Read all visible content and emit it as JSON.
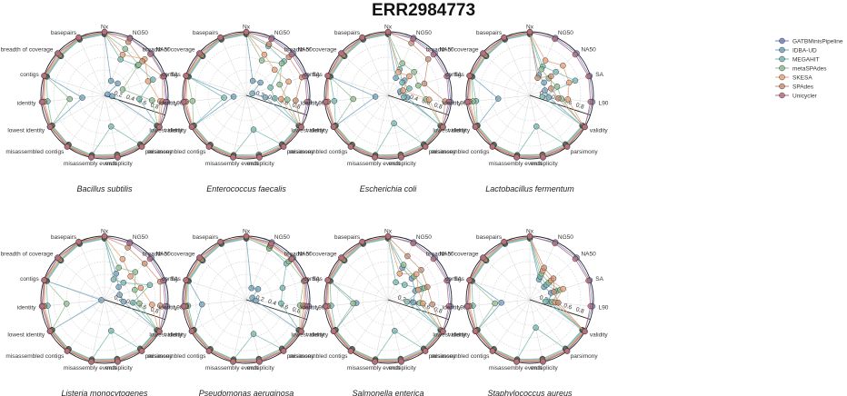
{
  "title": "ERR2984773",
  "chart_data": {
    "type": "radar",
    "axes": [
      "NG50",
      "NA50",
      "SA",
      "L90",
      "validity",
      "parsimony",
      "multiplicity",
      "misassembly events",
      "misassembled contigs",
      "lowest identity",
      "identity",
      "contigs",
      "breadth of coverage",
      "basepairs",
      "Nx"
    ],
    "rticks": [
      "0.2",
      "0.4",
      "0.6",
      "0.8"
    ],
    "grid": true,
    "legend_position": "right",
    "series": [
      {
        "name": "GATBMinisPipeline",
        "color": "#6c7fc4"
      },
      {
        "name": "IDBA-UD",
        "color": "#6fa3bf"
      },
      {
        "name": "MEGAHIT",
        "color": "#73b9b0"
      },
      {
        "name": "metaSPAdes",
        "color": "#8fbf8f"
      },
      {
        "name": "SKESA",
        "color": "#e8a37a"
      },
      {
        "name": "SPAdes",
        "color": "#c98f73"
      },
      {
        "name": "Unicycler",
        "color": "#b56a7e"
      }
    ],
    "panels": [
      {
        "species": "Bacillus subtilis",
        "values": [
          [
            0.99,
            0.99,
            0.99,
            0.99,
            0.99,
            0.99,
            0.99,
            0.99,
            0.99,
            0.99,
            0.99,
            0.99,
            0.99,
            0.99,
            0.99
          ],
          [
            0.25,
            0.28,
            0.05,
            0.12,
            0.95,
            0.95,
            0.95,
            0.96,
            0.96,
            0.95,
            0.35,
            0.95,
            0.92,
            0.96,
            0.96
          ],
          [
            0.62,
            0.7,
            0.8,
            0.55,
            0.96,
            0.96,
            0.5,
            0.96,
            0.96,
            0.95,
            0.9,
            0.96,
            0.93,
            0.97,
            0.97
          ],
          [
            0.8,
            0.72,
            0.3,
            0.75,
            0.97,
            0.97,
            0.96,
            0.97,
            0.97,
            0.96,
            0.55,
            0.97,
            0.94,
            0.98,
            0.98
          ],
          [
            0.7,
            0.85,
            0.72,
            0.88,
            0.98,
            0.98,
            0.97,
            0.98,
            0.98,
            0.97,
            0.95,
            0.98,
            0.95,
            0.99,
            0.99
          ],
          [
            0.92,
            0.8,
            0.96,
            0.92,
            0.99,
            0.99,
            0.98,
            0.99,
            0.99,
            0.98,
            0.97,
            0.99,
            0.97,
            0.99,
            0.99
          ],
          [
            0.98,
            0.97,
            0.98,
            0.97,
            1.0,
            1.0,
            1.0,
            1.0,
            1.0,
            0.99,
            0.99,
            1.0,
            0.99,
            1.0,
            1.0
          ]
        ]
      },
      {
        "species": "Enterococcus faecalis",
        "values": [
          [
            0.99,
            0.99,
            0.99,
            0.99,
            0.99,
            0.99,
            0.99,
            0.99,
            0.99,
            0.99,
            0.99,
            0.99,
            0.99,
            0.99,
            0.99
          ],
          [
            0.25,
            0.3,
            0.1,
            0.3,
            0.95,
            0.95,
            0.95,
            0.96,
            0.96,
            0.95,
            0.2,
            0.95,
            0.92,
            0.96,
            0.96
          ],
          [
            0.85,
            0.8,
            0.4,
            0.45,
            0.96,
            0.96,
            0.55,
            0.96,
            0.96,
            0.95,
            0.35,
            0.96,
            0.93,
            0.97,
            0.97
          ],
          [
            0.6,
            0.75,
            0.55,
            0.65,
            0.97,
            0.97,
            0.97,
            0.97,
            0.97,
            0.96,
            0.85,
            0.97,
            0.94,
            0.98,
            0.98
          ],
          [
            0.7,
            0.6,
            0.7,
            0.55,
            0.98,
            0.98,
            0.98,
            0.98,
            0.98,
            0.97,
            0.95,
            0.98,
            0.95,
            0.99,
            0.99
          ],
          [
            0.88,
            0.9,
            0.92,
            0.78,
            0.99,
            0.99,
            0.99,
            0.99,
            0.99,
            0.98,
            0.97,
            0.99,
            0.97,
            0.99,
            0.99
          ],
          [
            0.97,
            0.96,
            0.97,
            0.96,
            1.0,
            1.0,
            1.0,
            1.0,
            1.0,
            0.99,
            0.99,
            1.0,
            0.99,
            1.0,
            1.0
          ]
        ]
      },
      {
        "species": "Escherichia coli",
        "values": [
          [
            0.99,
            0.99,
            0.99,
            0.99,
            0.99,
            0.99,
            0.99,
            0.99,
            0.99,
            0.99,
            0.99,
            0.99,
            0.99,
            0.99,
            0.99
          ],
          [
            0.3,
            0.35,
            0.2,
            0.3,
            0.95,
            0.95,
            0.95,
            0.96,
            0.96,
            0.95,
            0.2,
            0.95,
            0.92,
            0.96,
            0.96
          ],
          [
            0.45,
            0.3,
            0.35,
            0.25,
            0.96,
            0.96,
            0.45,
            0.96,
            0.96,
            0.95,
            0.85,
            0.96,
            0.93,
            0.97,
            0.97
          ],
          [
            0.55,
            0.55,
            0.5,
            0.6,
            0.97,
            0.97,
            0.96,
            0.97,
            0.97,
            0.96,
            0.55,
            0.97,
            0.94,
            0.98,
            0.98
          ],
          [
            0.4,
            0.45,
            0.25,
            0.65,
            0.98,
            0.98,
            0.97,
            0.98,
            0.98,
            0.97,
            0.95,
            0.98,
            0.95,
            0.99,
            0.99
          ],
          [
            0.9,
            0.85,
            0.6,
            0.9,
            0.99,
            0.99,
            0.98,
            0.99,
            0.99,
            0.98,
            0.97,
            0.99,
            0.97,
            0.99,
            0.99
          ],
          [
            0.97,
            0.96,
            0.97,
            0.96,
            1.0,
            1.0,
            1.0,
            1.0,
            1.0,
            0.99,
            0.99,
            1.0,
            0.99,
            1.0,
            1.0
          ]
        ]
      },
      {
        "species": "Lactobacillus fermentum",
        "values": [
          [
            0.99,
            0.99,
            0.99,
            0.99,
            0.99,
            0.99,
            0.99,
            0.99,
            0.99,
            0.99,
            0.99,
            0.99,
            0.99,
            0.99,
            0.99
          ],
          [
            0.35,
            0.3,
            0.25,
            0.3,
            0.95,
            0.95,
            0.95,
            0.96,
            0.96,
            0.95,
            0.5,
            0.95,
            0.92,
            0.96,
            0.96
          ],
          [
            0.5,
            0.55,
            0.75,
            0.2,
            0.96,
            0.96,
            0.5,
            0.96,
            0.96,
            0.95,
            0.85,
            0.96,
            0.93,
            0.97,
            0.97
          ],
          [
            0.45,
            0.4,
            0.45,
            0.5,
            0.97,
            0.97,
            0.96,
            0.97,
            0.97,
            0.96,
            0.9,
            0.97,
            0.94,
            0.98,
            0.98
          ],
          [
            0.6,
            0.7,
            0.65,
            0.6,
            0.98,
            0.98,
            0.97,
            0.98,
            0.98,
            0.97,
            0.95,
            0.98,
            0.95,
            0.99,
            0.99
          ],
          [
            0.3,
            0.45,
            0.35,
            0.45,
            0.99,
            0.99,
            0.98,
            0.99,
            0.99,
            0.98,
            0.97,
            0.99,
            0.97,
            0.99,
            0.99
          ],
          [
            0.97,
            0.96,
            0.97,
            0.96,
            1.0,
            1.0,
            1.0,
            1.0,
            1.0,
            0.99,
            0.99,
            1.0,
            0.99,
            1.0,
            1.0
          ]
        ]
      },
      {
        "species": "Listeria monocytogenes",
        "values": [
          [
            0.99,
            0.99,
            0.99,
            0.99,
            0.99,
            0.99,
            0.99,
            0.99,
            0.99,
            0.99,
            0.99,
            0.99,
            0.99,
            0.99,
            0.99
          ],
          [
            0.45,
            0.3,
            0.25,
            0.3,
            0.95,
            0.95,
            0.95,
            0.96,
            0.96,
            0.95,
            0.05,
            0.95,
            0.92,
            0.96,
            0.96
          ],
          [
            0.35,
            0.4,
            0.75,
            0.45,
            0.96,
            0.96,
            0.5,
            0.96,
            0.96,
            0.95,
            0.9,
            0.96,
            0.93,
            0.97,
            0.97
          ],
          [
            0.55,
            0.65,
            0.5,
            0.55,
            0.97,
            0.97,
            0.96,
            0.97,
            0.97,
            0.96,
            0.6,
            0.97,
            0.94,
            0.98,
            0.98
          ],
          [
            0.7,
            0.55,
            0.6,
            0.75,
            0.98,
            0.98,
            0.97,
            0.98,
            0.98,
            0.97,
            0.95,
            0.98,
            0.95,
            0.99,
            0.99
          ],
          [
            0.9,
            0.85,
            0.92,
            0.88,
            0.99,
            0.99,
            0.98,
            0.99,
            0.99,
            0.98,
            0.97,
            0.99,
            0.97,
            0.99,
            0.99
          ],
          [
            0.97,
            0.96,
            0.97,
            0.96,
            1.0,
            1.0,
            1.0,
            1.0,
            1.0,
            0.99,
            0.99,
            1.0,
            0.99,
            1.0,
            1.0
          ]
        ]
      },
      {
        "species": "Pseudomonas aeruginosa",
        "values": [
          [
            0.99,
            0.99,
            0.99,
            0.99,
            0.99,
            0.99,
            0.99,
            0.99,
            0.99,
            0.99,
            0.99,
            0.99,
            0.99,
            0.99,
            0.99
          ],
          [
            0.2,
            0.25,
            0.1,
            0.15,
            0.95,
            0.95,
            0.95,
            0.96,
            0.96,
            0.95,
            0.7,
            0.95,
            0.92,
            0.96,
            0.96
          ],
          [
            0.9,
            0.85,
            0.6,
            0.55,
            0.96,
            0.96,
            0.55,
            0.96,
            0.96,
            0.95,
            0.92,
            0.96,
            0.93,
            0.97,
            0.97
          ],
          [
            0.88,
            0.9,
            0.95,
            0.85,
            0.97,
            0.97,
            0.96,
            0.97,
            0.97,
            0.96,
            0.95,
            0.97,
            0.94,
            0.98,
            0.98
          ],
          [
            0.93,
            0.95,
            0.97,
            0.9,
            0.98,
            0.98,
            0.97,
            0.98,
            0.98,
            0.97,
            0.96,
            0.98,
            0.95,
            0.99,
            0.99
          ],
          [
            0.95,
            0.97,
            0.98,
            0.93,
            0.99,
            0.99,
            0.98,
            0.99,
            0.99,
            0.98,
            0.97,
            0.99,
            0.97,
            0.99,
            0.99
          ],
          [
            0.97,
            0.96,
            0.97,
            0.96,
            1.0,
            1.0,
            1.0,
            1.0,
            1.0,
            0.99,
            0.99,
            1.0,
            0.99,
            1.0,
            1.0
          ]
        ]
      },
      {
        "species": "Salmonella enterica",
        "values": [
          [
            0.99,
            0.99,
            0.99,
            0.99,
            0.99,
            0.99,
            0.99,
            0.99,
            0.99,
            0.99,
            0.99,
            0.99,
            0.99,
            0.99,
            0.99
          ],
          [
            0.55,
            0.5,
            0.45,
            0.4,
            0.95,
            0.95,
            0.95,
            0.96,
            0.96,
            0.95,
            0.5,
            0.95,
            0.92,
            0.96,
            0.96
          ],
          [
            0.3,
            0.35,
            0.55,
            0.3,
            0.96,
            0.96,
            0.5,
            0.96,
            0.96,
            0.95,
            0.9,
            0.96,
            0.93,
            0.97,
            0.97
          ],
          [
            0.6,
            0.55,
            0.6,
            0.5,
            0.97,
            0.97,
            0.96,
            0.97,
            0.97,
            0.96,
            0.55,
            0.97,
            0.94,
            0.98,
            0.98
          ],
          [
            0.45,
            0.6,
            0.5,
            0.55,
            0.98,
            0.98,
            0.97,
            0.98,
            0.98,
            0.97,
            0.95,
            0.98,
            0.95,
            0.99,
            0.99
          ],
          [
            0.75,
            0.7,
            0.65,
            0.7,
            0.99,
            0.99,
            0.98,
            0.99,
            0.99,
            0.98,
            0.97,
            0.99,
            0.97,
            0.99,
            0.99
          ],
          [
            0.97,
            0.96,
            0.97,
            0.96,
            1.0,
            1.0,
            1.0,
            1.0,
            1.0,
            0.99,
            0.99,
            1.0,
            0.99,
            1.0,
            1.0
          ]
        ]
      },
      {
        "species": "Staphylococcus aureus",
        "values": [
          [
            0.99,
            0.99,
            0.99,
            0.99,
            0.99,
            0.99,
            0.99,
            0.99,
            0.99,
            0.99,
            0.99,
            0.99,
            0.99,
            0.99,
            0.99
          ],
          [
            0.35,
            0.3,
            0.35,
            0.3,
            0.95,
            0.95,
            0.95,
            0.96,
            0.96,
            0.95,
            0.45,
            0.95,
            0.92,
            0.96,
            0.96
          ],
          [
            0.4,
            0.35,
            0.45,
            0.25,
            0.96,
            0.96,
            0.45,
            0.96,
            0.96,
            0.95,
            0.9,
            0.96,
            0.93,
            0.97,
            0.97
          ],
          [
            0.45,
            0.4,
            0.5,
            0.35,
            0.97,
            0.97,
            0.96,
            0.97,
            0.97,
            0.96,
            0.55,
            0.97,
            0.94,
            0.98,
            0.98
          ],
          [
            0.5,
            0.45,
            0.55,
            0.4,
            0.98,
            0.98,
            0.97,
            0.98,
            0.98,
            0.97,
            0.95,
            0.98,
            0.95,
            0.99,
            0.99
          ],
          [
            0.55,
            0.5,
            0.4,
            0.45,
            0.99,
            0.99,
            0.98,
            0.99,
            0.99,
            0.98,
            0.97,
            0.99,
            0.97,
            0.99,
            0.99
          ],
          [
            0.97,
            0.96,
            0.97,
            0.96,
            1.0,
            1.0,
            1.0,
            1.0,
            1.0,
            0.99,
            0.99,
            1.0,
            0.99,
            1.0,
            1.0
          ]
        ]
      }
    ]
  }
}
